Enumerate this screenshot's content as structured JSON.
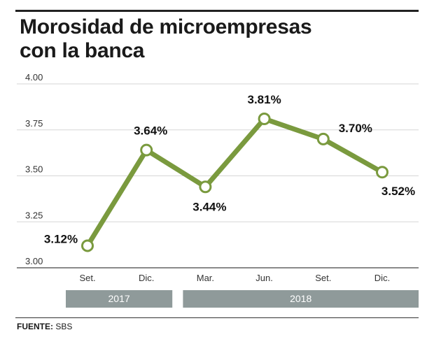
{
  "title": {
    "line1": "Morosidad de microempresas",
    "line2": "con la banca"
  },
  "source": {
    "label": "FUENTE:",
    "value": "SBS"
  },
  "colors": {
    "line": "#7a9a3e",
    "band": "#8f9a9a",
    "grid": "#d6d6d6"
  },
  "chart_data": {
    "type": "line",
    "title": "Morosidad de microempresas con la banca",
    "xlabel": "",
    "ylabel": "",
    "ylim": [
      3.0,
      4.0
    ],
    "yticks": [
      "4.00",
      "3.75",
      "3.50",
      "3.25",
      "3.00"
    ],
    "ytick_values": [
      4.0,
      3.75,
      3.5,
      3.25,
      3.0
    ],
    "categories": [
      "Set.",
      "Dic.",
      "Mar.",
      "Jun.",
      "Set.",
      "Dic."
    ],
    "values": [
      3.12,
      3.64,
      3.44,
      3.81,
      3.7,
      3.52
    ],
    "data_labels": [
      "3.12%",
      "3.64%",
      "3.44%",
      "3.81%",
      "3.70%",
      "3.52%"
    ],
    "groups": [
      {
        "label": "2017",
        "span": [
          0,
          1
        ]
      },
      {
        "label": "2018",
        "span": [
          2,
          5
        ]
      }
    ],
    "grid": true
  }
}
